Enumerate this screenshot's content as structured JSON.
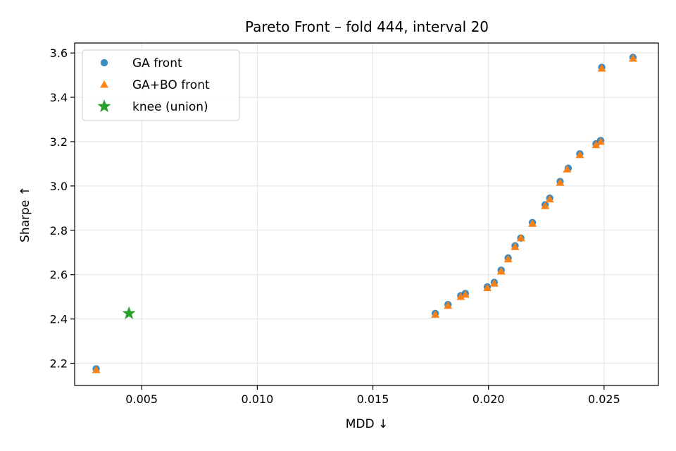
{
  "chart_data": {
    "type": "scatter",
    "title": "Pareto Front – fold 444, interval 20",
    "xlabel": "MDD ↓",
    "ylabel": "Sharpe ↑",
    "xlim": [
      0.0021,
      0.02735
    ],
    "ylim": [
      2.1,
      3.645
    ],
    "xticks": [
      0.005,
      0.01,
      0.015,
      0.02,
      0.025
    ],
    "xtick_labels": [
      "0.005",
      "0.010",
      "0.015",
      "0.020",
      "0.025"
    ],
    "yticks": [
      2.2,
      2.4,
      2.6,
      2.8,
      3.0,
      3.2,
      3.4,
      3.6
    ],
    "ytick_labels": [
      "2.2",
      "2.4",
      "2.6",
      "2.8",
      "3.0",
      "3.2",
      "3.4",
      "3.6"
    ],
    "grid": true,
    "legend_position": "top-left",
    "series": [
      {
        "name": "GA front",
        "marker": "circle",
        "color": "#1f77b4",
        "points": [
          [
            0.00303,
            2.175
          ],
          [
            0.0177,
            2.425
          ],
          [
            0.01825,
            2.465
          ],
          [
            0.0188,
            2.505
          ],
          [
            0.019,
            2.515
          ],
          [
            0.01995,
            2.545
          ],
          [
            0.02025,
            2.565
          ],
          [
            0.02055,
            2.62
          ],
          [
            0.02085,
            2.675
          ],
          [
            0.02115,
            2.73
          ],
          [
            0.0214,
            2.765
          ],
          [
            0.0219,
            2.835
          ],
          [
            0.02245,
            2.915
          ],
          [
            0.02265,
            2.945
          ],
          [
            0.0231,
            3.02
          ],
          [
            0.02345,
            3.08
          ],
          [
            0.02395,
            3.145
          ],
          [
            0.02465,
            3.19
          ],
          [
            0.02485,
            3.205
          ],
          [
            0.0249,
            3.535
          ],
          [
            0.02625,
            3.58
          ]
        ]
      },
      {
        "name": "GA+BO front",
        "marker": "triangle",
        "color": "#ff7f0e",
        "points": [
          [
            0.00303,
            2.17
          ],
          [
            0.0177,
            2.42
          ],
          [
            0.01825,
            2.46
          ],
          [
            0.0188,
            2.5
          ],
          [
            0.019,
            2.51
          ],
          [
            0.01995,
            2.54
          ],
          [
            0.02025,
            2.56
          ],
          [
            0.02055,
            2.615
          ],
          [
            0.02085,
            2.67
          ],
          [
            0.02115,
            2.725
          ],
          [
            0.0214,
            2.765
          ],
          [
            0.0219,
            2.83
          ],
          [
            0.02245,
            2.91
          ],
          [
            0.02265,
            2.94
          ],
          [
            0.0231,
            3.015
          ],
          [
            0.0234,
            3.075
          ],
          [
            0.02395,
            3.14
          ],
          [
            0.02465,
            3.185
          ],
          [
            0.02485,
            3.2
          ],
          [
            0.0249,
            3.53
          ],
          [
            0.02625,
            3.575
          ]
        ]
      },
      {
        "name": "knee (union)",
        "marker": "star",
        "color": "#2ca02c",
        "points": [
          [
            0.00445,
            2.425
          ]
        ]
      }
    ]
  }
}
